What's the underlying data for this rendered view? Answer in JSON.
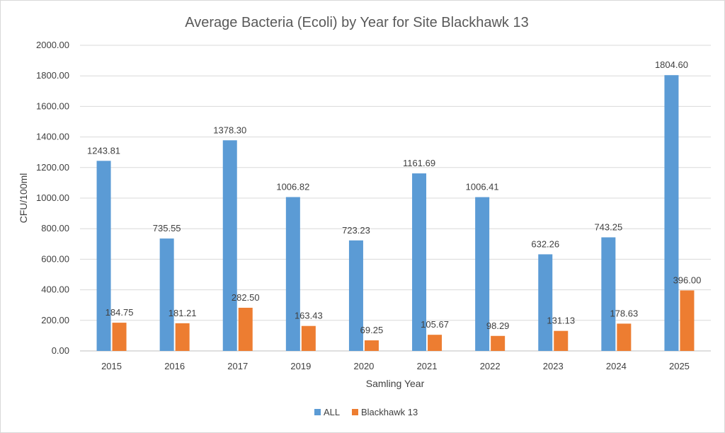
{
  "chart_data": {
    "type": "bar",
    "title": "Average Bacteria (Ecoli) by Year for Site Blackhawk 13",
    "xlabel": "Samling Year",
    "ylabel": "CFU/100ml",
    "ylim": [
      0,
      2000
    ],
    "ytick_step": 200,
    "ytick_labels": [
      "0.00",
      "200.00",
      "400.00",
      "600.00",
      "800.00",
      "1000.00",
      "1200.00",
      "1400.00",
      "1600.00",
      "1800.00",
      "2000.00"
    ],
    "grid": true,
    "legend_position": "bottom",
    "categories": [
      "2015",
      "2016",
      "2017",
      "2019",
      "2020",
      "2021",
      "2022",
      "2023",
      "2024",
      "2025"
    ],
    "series": [
      {
        "name": "ALL",
        "color": "#5b9bd5",
        "values": [
          1243.81,
          735.55,
          1378.3,
          1006.82,
          723.23,
          1161.69,
          1006.41,
          632.26,
          743.25,
          1804.6
        ],
        "labels": [
          "1243.81",
          "735.55",
          "1378.30",
          "1006.82",
          "723.23",
          "1161.69",
          "1006.41",
          "632.26",
          "743.25",
          "1804.60"
        ]
      },
      {
        "name": "Blackhawk 13",
        "color": "#ed7d31",
        "values": [
          184.75,
          181.21,
          282.5,
          163.43,
          69.25,
          105.67,
          98.29,
          131.13,
          178.63,
          396.0
        ],
        "labels": [
          "184.75",
          "181.21",
          "282.50",
          "163.43",
          "69.25",
          "105.67",
          "98.29",
          "131.13",
          "178.63",
          "396.00"
        ]
      }
    ]
  }
}
